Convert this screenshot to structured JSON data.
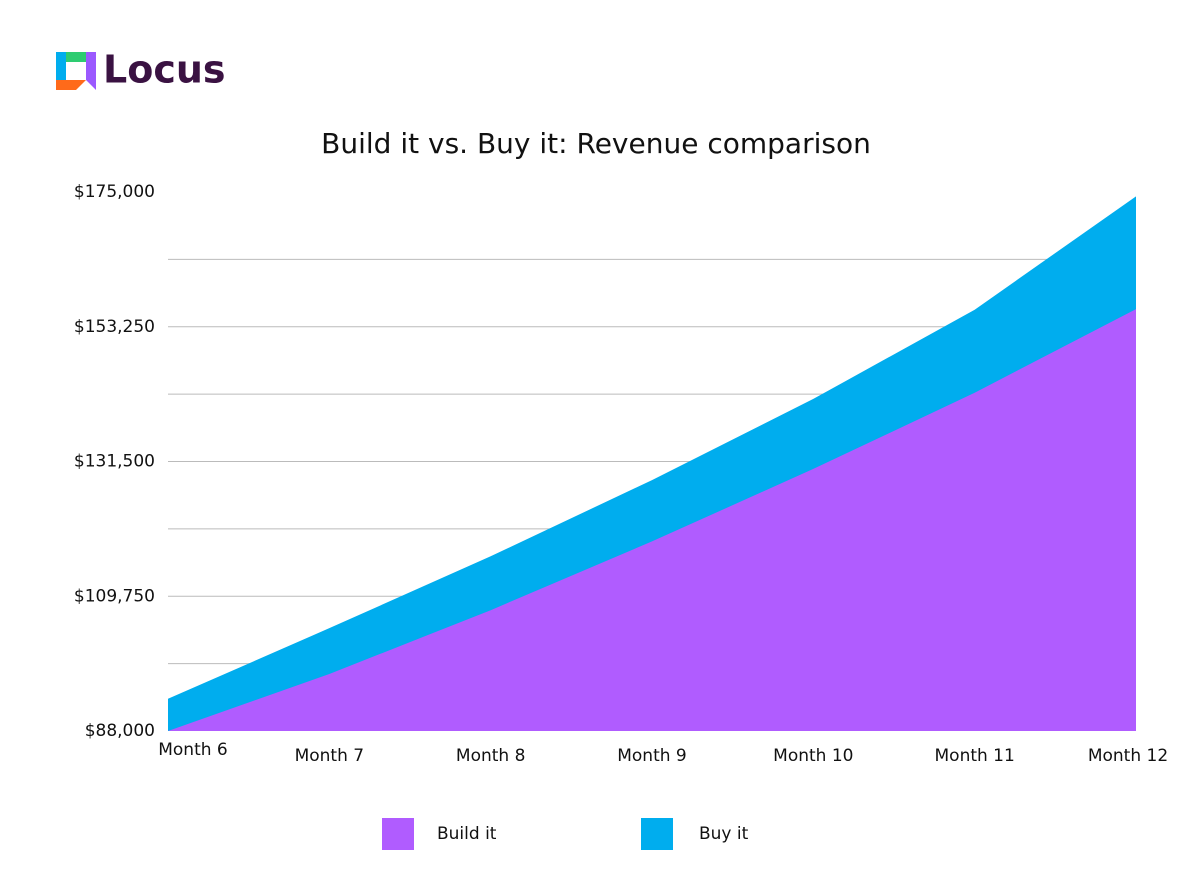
{
  "logo": "Locus",
  "chart_data": {
    "type": "area",
    "title": "Build it vs. Buy it: Revenue comparison",
    "categories": [
      "Month 6",
      "Month 7",
      "Month 8",
      "Month 9",
      "Month 10",
      "Month 11",
      "Month 12"
    ],
    "series": [
      {
        "name": "Build it",
        "color": "#b05cff",
        "values": [
          88000,
          97200,
          107500,
          118600,
          130300,
          142600,
          156100
        ]
      },
      {
        "name": "Buy it",
        "color": "#00adee",
        "values": [
          93200,
          104600,
          116200,
          128500,
          141600,
          156000,
          174300
        ]
      }
    ],
    "ylim": [
      88000,
      175000
    ],
    "yticks": [
      {
        "value": 88000,
        "label": "$88,000"
      },
      {
        "value": 109750,
        "label": "$109,750"
      },
      {
        "value": 131500,
        "label": "$131,500"
      },
      {
        "value": 153250,
        "label": "$153,250"
      },
      {
        "value": 175000,
        "label": "$175,000"
      }
    ],
    "minor_yticks": [
      98875,
      120625,
      142375,
      164125
    ],
    "grid": true,
    "legend": "bottom"
  }
}
